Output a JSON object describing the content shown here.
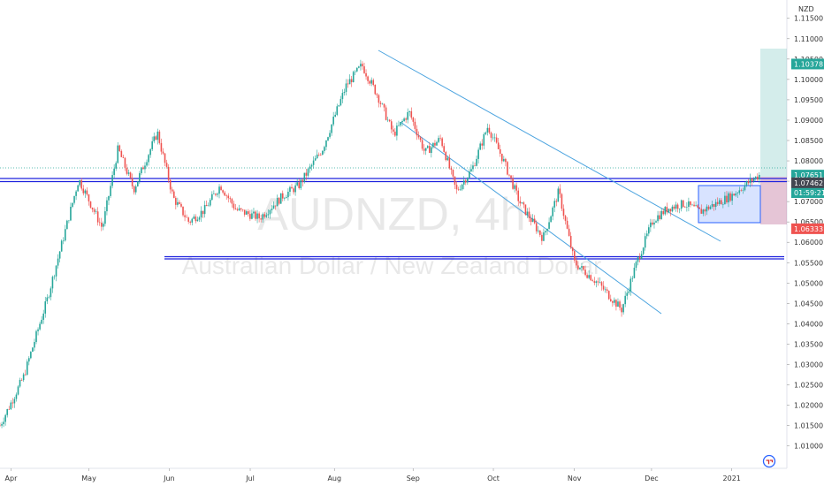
{
  "chart_data": {
    "type": "candlestick",
    "symbol": "AUDNZD, 4h",
    "description": "Australian Dollar / New Zealand Dollar",
    "currency": "NZD",
    "x_tick_labels": [
      "Apr",
      "May",
      "Jun",
      "Jul",
      "Aug",
      "Sep",
      "Oct",
      "Nov",
      "Dec",
      "2021"
    ],
    "y_tick_labels": [
      "1.11500",
      "1.11000",
      "1.10500",
      "1.10000",
      "1.09500",
      "1.09000",
      "1.08500",
      "1.08000",
      "1.07500",
      "1.07000",
      "1.06500",
      "1.06000",
      "1.05500",
      "1.05000",
      "1.04500",
      "1.04000",
      "1.03500",
      "1.03000",
      "1.02500",
      "1.02000",
      "1.01500",
      "1.01000"
    ],
    "ylim": [
      1.0045,
      1.1195
    ],
    "price_badges": [
      {
        "text": "1.10378",
        "value": 1.10378,
        "color": "#26a69a"
      },
      {
        "text": "1.07651",
        "value": 1.07651,
        "color": "#26a69a"
      },
      {
        "text": "01:59:21",
        "value": 1.0722,
        "color": "#26a69a"
      },
      {
        "text": "1.07462",
        "value": 1.07462,
        "color": "#434651"
      },
      {
        "text": "1.06333",
        "value": 1.06333,
        "color": "#ef5350"
      }
    ],
    "series": [
      {
        "x": 0,
        "y": 1.015
      },
      {
        "x": 0.03,
        "y": 1.027
      },
      {
        "x": 0.06,
        "y": 1.046
      },
      {
        "x": 0.1,
        "y": 1.0755
      },
      {
        "x": 0.13,
        "y": 1.0635
      },
      {
        "x": 0.15,
        "y": 1.083
      },
      {
        "x": 0.17,
        "y": 1.073
      },
      {
        "x": 0.2,
        "y": 1.087
      },
      {
        "x": 0.22,
        "y": 1.071
      },
      {
        "x": 0.24,
        "y": 1.065
      },
      {
        "x": 0.26,
        "y": 1.068
      },
      {
        "x": 0.28,
        "y": 1.074
      },
      {
        "x": 0.3,
        "y": 1.068
      },
      {
        "x": 0.33,
        "y": 1.066
      },
      {
        "x": 0.36,
        "y": 1.0715
      },
      {
        "x": 0.38,
        "y": 1.074
      },
      {
        "x": 0.41,
        "y": 1.083
      },
      {
        "x": 0.44,
        "y": 1.0985
      },
      {
        "x": 0.46,
        "y": 1.1035
      },
      {
        "x": 0.48,
        "y": 1.096
      },
      {
        "x": 0.5,
        "y": 1.0865
      },
      {
        "x": 0.52,
        "y": 1.092
      },
      {
        "x": 0.54,
        "y": 1.082
      },
      {
        "x": 0.56,
        "y": 1.0855
      },
      {
        "x": 0.58,
        "y": 1.0725
      },
      {
        "x": 0.6,
        "y": 1.078
      },
      {
        "x": 0.62,
        "y": 1.0885
      },
      {
        "x": 0.64,
        "y": 1.08
      },
      {
        "x": 0.66,
        "y": 1.07
      },
      {
        "x": 0.69,
        "y": 1.061
      },
      {
        "x": 0.71,
        "y": 1.0725
      },
      {
        "x": 0.73,
        "y": 1.055
      },
      {
        "x": 0.76,
        "y": 1.05
      },
      {
        "x": 0.79,
        "y": 1.0435
      },
      {
        "x": 0.81,
        "y": 1.0555
      },
      {
        "x": 0.83,
        "y": 1.0655
      },
      {
        "x": 0.85,
        "y": 1.0685
      },
      {
        "x": 0.87,
        "y": 1.0695
      },
      {
        "x": 0.89,
        "y": 1.0675
      },
      {
        "x": 0.91,
        "y": 1.0695
      },
      {
        "x": 0.93,
        "y": 1.0715
      },
      {
        "x": 0.95,
        "y": 1.0745
      },
      {
        "x": 0.965,
        "y": 1.0765
      }
    ]
  },
  "icons": {
    "settings_icon": "tradingview-logo-icon"
  }
}
